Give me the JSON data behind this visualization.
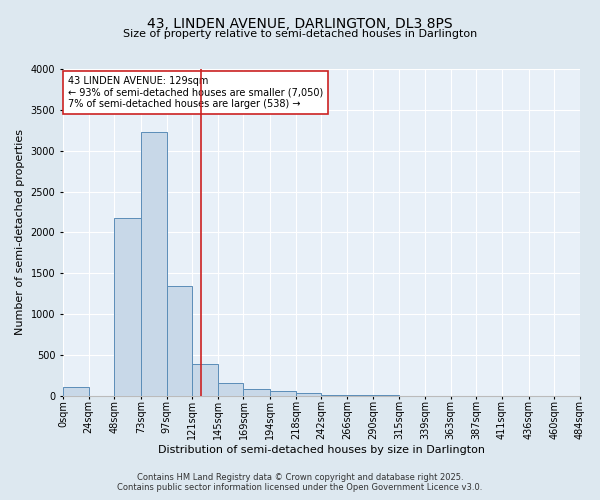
{
  "title_line1": "43, LINDEN AVENUE, DARLINGTON, DL3 8PS",
  "title_line2": "Size of property relative to semi-detached houses in Darlington",
  "xlabel": "Distribution of semi-detached houses by size in Darlington",
  "ylabel": "Number of semi-detached properties",
  "footnote_line1": "Contains HM Land Registry data © Crown copyright and database right 2025.",
  "footnote_line2": "Contains public sector information licensed under the Open Government Licence v3.0.",
  "bin_edges": [
    0,
    24,
    48,
    73,
    97,
    121,
    145,
    169,
    194,
    218,
    242,
    266,
    290,
    315,
    339,
    363,
    387,
    411,
    436,
    460,
    484
  ],
  "bin_labels": [
    "0sqm",
    "24sqm",
    "48sqm",
    "73sqm",
    "97sqm",
    "121sqm",
    "145sqm",
    "169sqm",
    "194sqm",
    "218sqm",
    "242sqm",
    "266sqm",
    "290sqm",
    "315sqm",
    "339sqm",
    "363sqm",
    "387sqm",
    "411sqm",
    "436sqm",
    "460sqm",
    "484sqm"
  ],
  "counts": [
    110,
    0,
    2175,
    3225,
    1340,
    395,
    155,
    90,
    55,
    30,
    15,
    10,
    5,
    0,
    0,
    0,
    0,
    0,
    0,
    0
  ],
  "bar_facecolor": "#c8d8e8",
  "bar_edgecolor": "#5b8db8",
  "property_size": 129,
  "vline_color": "#cc2222",
  "annotation_text": "43 LINDEN AVENUE: 129sqm\n← 93% of semi-detached houses are smaller (7,050)\n7% of semi-detached houses are larger (538) →",
  "annotation_box_edgecolor": "#cc2222",
  "annotation_box_facecolor": "#ffffff",
  "bg_color": "#dde8f0",
  "plot_bg_color": "#e8f0f8",
  "grid_color": "#ffffff",
  "ylim": [
    0,
    4000
  ],
  "xlim_left": 0,
  "xlim_right": 484,
  "title_fontsize": 10,
  "subtitle_fontsize": 8,
  "ylabel_fontsize": 8,
  "xlabel_fontsize": 8,
  "tick_fontsize": 7,
  "footnote_fontsize": 6,
  "annot_fontsize": 7
}
